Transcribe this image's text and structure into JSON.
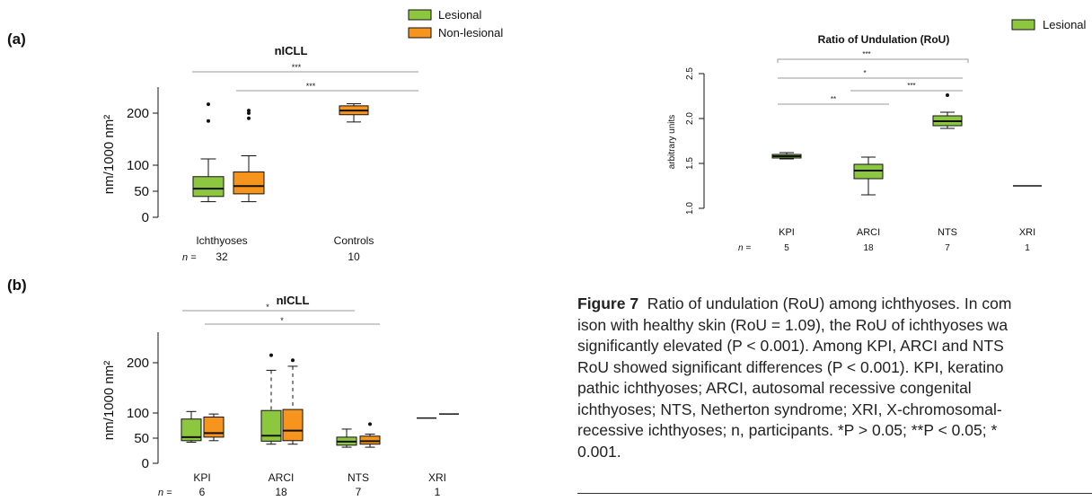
{
  "legend": {
    "lesional": "Lesional",
    "non_lesional": "Non-lesional"
  },
  "colors": {
    "lesional": "#8dc63f",
    "non_lesional": "#f7941d",
    "box_edge": "#111111",
    "ref_line": "#9a9a9a"
  },
  "panel_a": {
    "label": "(a)",
    "chart_data": {
      "type": "box",
      "title": "nICLL",
      "ylabel": "nm/1000 nm²",
      "yticks": [
        0,
        50,
        100,
        200
      ],
      "categories": [
        "Ichthyoses",
        "Controls"
      ],
      "n_label": "n =",
      "n": [
        "32",
        "10"
      ],
      "series": [
        {
          "name": "Lesional",
          "boxes": [
            {
              "min": 30,
              "q1": 40,
              "median": 55,
              "q3": 78,
              "max": 112,
              "outliers": [
                185,
                217
              ]
            }
          ]
        },
        {
          "name": "Non-lesional",
          "boxes": [
            {
              "min": 30,
              "q1": 45,
              "median": 60,
              "q3": 87,
              "max": 118,
              "outliers": [
                190,
                200,
                205
              ]
            },
            {
              "min": 183,
              "q1": 197,
              "median": 205,
              "q3": 214,
              "max": 218,
              "outliers": []
            }
          ]
        }
      ],
      "significance": [
        "***",
        "***"
      ]
    }
  },
  "panel_b": {
    "label": "(b)",
    "chart_data": {
      "type": "box",
      "title": "nICLL",
      "ylabel": "nm/1000 nm²",
      "yticks": [
        0,
        50,
        100,
        200
      ],
      "categories": [
        "KPI",
        "ARCI",
        "NTS",
        "XRI"
      ],
      "n_label": "n =",
      "n": [
        "6",
        "18",
        "7",
        "1"
      ],
      "series": [
        {
          "name": "Lesional",
          "boxes": [
            {
              "min": 42,
              "q1": 45,
              "median": 52,
              "q3": 88,
              "max": 103,
              "outliers": []
            },
            {
              "min": 38,
              "q1": 44,
              "median": 55,
              "q3": 105,
              "max": 185,
              "outliers": [
                215
              ]
            },
            {
              "min": 32,
              "q1": 36,
              "median": 43,
              "q3": 52,
              "max": 68,
              "outliers": []
            },
            {
              "single": 90
            }
          ]
        },
        {
          "name": "Non-lesional",
          "boxes": [
            {
              "min": 45,
              "q1": 52,
              "median": 60,
              "q3": 92,
              "max": 98,
              "outliers": []
            },
            {
              "min": 38,
              "q1": 45,
              "median": 65,
              "q3": 107,
              "max": 193,
              "outliers": [
                205
              ]
            },
            {
              "min": 32,
              "q1": 38,
              "median": 44,
              "q3": 54,
              "max": 58,
              "outliers": [
                78
              ]
            },
            {
              "single": 98
            }
          ]
        }
      ],
      "significance": [
        "*",
        "*"
      ]
    }
  },
  "panel_rou": {
    "chart_data": {
      "type": "box",
      "title": "Ratio of Undulation (RoU)",
      "ylabel": "arbitrary units",
      "yticks": [
        "1.0",
        "1.5",
        "2.0",
        "2.5"
      ],
      "ylim": [
        1.0,
        2.5
      ],
      "categories": [
        "KPI",
        "ARCI",
        "NTS",
        "XRI"
      ],
      "n_label": "n =",
      "n": [
        "5",
        "18",
        "7",
        "1"
      ],
      "series": [
        {
          "name": "Lesional",
          "boxes": [
            {
              "min": 1.55,
              "q1": 1.56,
              "median": 1.58,
              "q3": 1.6,
              "max": 1.62,
              "outliers": []
            },
            {
              "min": 1.15,
              "q1": 1.33,
              "median": 1.42,
              "q3": 1.49,
              "max": 1.57,
              "outliers": []
            },
            {
              "min": 1.89,
              "q1": 1.92,
              "median": 1.97,
              "q3": 2.03,
              "max": 2.07,
              "outliers": [
                2.26
              ]
            },
            {
              "single": 1.25
            }
          ]
        }
      ],
      "significance": [
        "***",
        "*",
        "***",
        "**"
      ]
    }
  },
  "caption": {
    "lines": [
      {
        "bold": "Figure 7",
        "rest": "  Ratio of undulation (RoU) among ichthyoses. In com"
      },
      {
        "text": "ison with healthy skin (RoU = 1.09), the RoU of ichthyoses wa"
      },
      {
        "text": "significantly elevated (P < 0.001). Among KPI, ARCI and NTS"
      },
      {
        "text": "RoU showed significant differences (P < 0.001). KPI, keratino"
      },
      {
        "text": "pathic ichthyoses; ARCI, autosomal recessive congenital"
      },
      {
        "text": "ichthyoses; NTS, Netherton syndrome; XRI, X-chromosomal-"
      },
      {
        "text": "recessive ichthyoses; n, participants. *P > 0.05; **P < 0.05; *"
      },
      {
        "text": "0.001."
      }
    ]
  }
}
